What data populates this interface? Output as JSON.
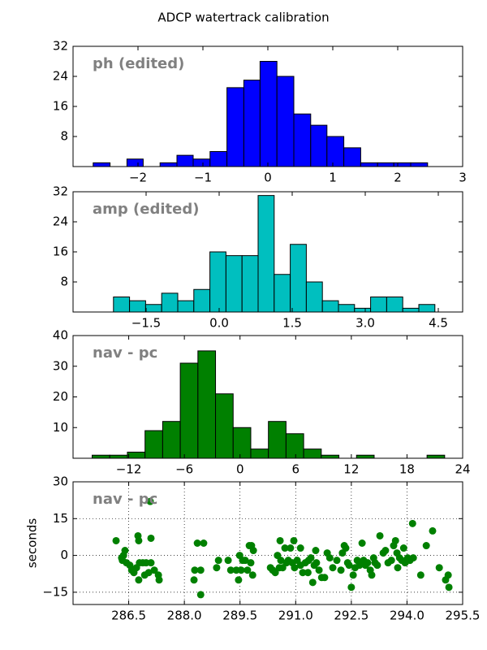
{
  "title": "ADCP watertrack calibration",
  "chart_data": [
    {
      "type": "histogram",
      "annotation": "ph (edited)",
      "color": "#0000ff",
      "bins": [
        -2.69,
        -2.43,
        -2.17,
        -1.92,
        -1.66,
        -1.4,
        -1.15,
        -0.89,
        -0.63,
        -0.37,
        -0.12,
        0.14,
        0.4,
        0.66,
        0.91,
        1.17,
        1.43,
        1.69,
        1.94,
        2.2,
        2.46
      ],
      "counts": [
        1,
        0,
        2,
        0,
        1,
        3,
        2,
        4,
        21,
        23,
        28,
        24,
        14,
        11,
        8,
        5,
        1,
        1,
        1,
        1
      ],
      "xlim": [
        -3,
        3
      ],
      "xticks": [
        {
          "value": -2,
          "label": "−2"
        },
        {
          "value": -1,
          "label": "−1"
        },
        0,
        1,
        2,
        3
      ],
      "ylim": [
        0,
        32
      ],
      "yticks": [
        8,
        16,
        24,
        32
      ]
    },
    {
      "type": "histogram",
      "annotation": "amp (edited)",
      "color": "#00bfbf",
      "bins": [
        -2.17,
        -1.84,
        -1.51,
        -1.18,
        -0.85,
        -0.52,
        -0.19,
        0.14,
        0.47,
        0.8,
        1.13,
        1.46,
        1.79,
        2.12,
        2.45,
        2.78,
        3.11,
        3.44,
        3.77,
        4.1,
        4.43
      ],
      "counts": [
        4,
        3,
        2,
        5,
        3,
        6,
        16,
        15,
        15,
        31,
        10,
        18,
        8,
        3,
        2,
        1,
        4,
        4,
        1,
        2
      ],
      "xlim": [
        -3,
        5
      ],
      "xticks": [
        {
          "value": -1.5,
          "label": "−1.5"
        },
        {
          "value": 0,
          "label": "0.0"
        },
        1.5,
        {
          "value": 3,
          "label": "3.0"
        },
        4.5
      ],
      "ylim": [
        0,
        32
      ],
      "yticks": [
        8,
        16,
        24,
        32
      ]
    },
    {
      "type": "histogram",
      "annotation": "nav - pc",
      "color": "#008000",
      "bins": [
        -15.94,
        -14.04,
        -12.14,
        -10.24,
        -8.34,
        -6.44,
        -4.54,
        -2.64,
        -0.74,
        1.16,
        3.06,
        4.96,
        6.86,
        8.76,
        10.66,
        12.56,
        14.46,
        16.36,
        18.26,
        20.16,
        22.06
      ],
      "counts": [
        1,
        1,
        2,
        9,
        12,
        31,
        35,
        21,
        10,
        3,
        12,
        8,
        3,
        1,
        0,
        1,
        0,
        0,
        0,
        1
      ],
      "xlim": [
        -18,
        24
      ],
      "xticks": [
        {
          "value": -12,
          "label": "−12"
        },
        {
          "value": -6,
          "label": "−6"
        },
        0,
        6,
        12,
        18,
        24
      ],
      "ylim": [
        0,
        40
      ],
      "yticks": [
        10,
        20,
        30,
        40
      ]
    },
    {
      "type": "scatter",
      "annotation": "nav - pc",
      "ylabel": "seconds",
      "color": "#008000",
      "grid": true,
      "x": [
        286.16,
        286.31,
        286.36,
        286.4,
        286.33,
        286.44,
        286.53,
        286.58,
        286.64,
        286.71,
        286.75,
        286.77,
        286.79,
        286.77,
        286.88,
        286.93,
        286.97,
        287.04,
        287.08,
        287.1,
        287.1,
        287.19,
        287.3,
        287.32,
        288.26,
        288.28,
        288.35,
        288.44,
        288.52,
        288.44,
        288.87,
        288.92,
        289.25,
        289.18,
        289.4,
        289.46,
        289.49,
        289.53,
        289.57,
        289.64,
        289.7,
        289.75,
        289.79,
        289.81,
        289.86,
        289.84,
        290.32,
        290.38,
        290.45,
        290.51,
        290.56,
        290.58,
        290.6,
        290.65,
        290.71,
        290.75,
        290.8,
        290.86,
        290.91,
        290.95,
        290.97,
        291.04,
        291.13,
        291.13,
        291.19,
        291.26,
        291.33,
        291.35,
        291.41,
        291.46,
        291.5,
        291.54,
        291.56,
        291.63,
        291.7,
        291.78,
        291.85,
        291.92,
        292.0,
        292.11,
        292.22,
        292.26,
        292.31,
        292.35,
        292.4,
        292.44,
        292.5,
        292.55,
        292.6,
        292.66,
        292.72,
        292.79,
        292.83,
        292.88,
        292.94,
        293.01,
        293.05,
        293.1,
        293.14,
        293.2,
        293.27,
        293.36,
        293.42,
        293.49,
        293.58,
        293.64,
        293.69,
        293.73,
        293.75,
        293.8,
        293.86,
        293.91,
        293.95,
        294.02,
        294.08,
        294.15,
        294.17,
        294.37,
        294.52,
        294.69,
        294.87,
        295.04,
        295.13,
        295.11
      ],
      "y": [
        6,
        -1,
        0,
        2,
        -2,
        -3,
        -4,
        -6,
        -7,
        -5,
        8,
        6,
        -3,
        -10,
        -3,
        -8,
        -3,
        -7,
        22,
        7,
        -3,
        -6,
        -8,
        -10,
        -10,
        -6,
        5,
        -16,
        5,
        -6,
        -5,
        -2,
        -6,
        -2,
        -6,
        -10,
        0,
        -6,
        -2,
        -2,
        -6,
        4,
        -3,
        4,
        2,
        -8,
        -5,
        -6,
        -7,
        0,
        -5,
        6,
        -2,
        -5,
        3,
        -3,
        -2,
        3,
        -3,
        6,
        -5,
        -2,
        3,
        -4,
        -7,
        -3,
        -7,
        -2,
        -1,
        -11,
        -4,
        2,
        -3,
        -6,
        -9,
        -9,
        1,
        -1,
        -5,
        -2,
        -6,
        1,
        4,
        3,
        -3,
        -4,
        -13,
        -8,
        -5,
        -2,
        -4,
        5,
        -2,
        -4,
        -3,
        -6,
        -8,
        -1,
        -3,
        -4,
        8,
        1,
        2,
        -3,
        -2,
        4,
        6,
        1,
        -5,
        -1,
        -2,
        3,
        -3,
        -1,
        -2,
        13,
        -1,
        -8,
        4,
        10,
        -5,
        -10,
        -13,
        -8
      ],
      "xlim": [
        285,
        295.5
      ],
      "xticks": [
        286.5,
        {
          "value": 288,
          "label": "288.0"
        },
        289.5,
        {
          "value": 291,
          "label": "291.0"
        },
        292.5,
        {
          "value": 294,
          "label": "294.0"
        },
        295.5
      ],
      "ylim": [
        -20,
        30
      ],
      "yticks": [
        {
          "value": -15,
          "label": "−15"
        },
        0,
        15,
        30
      ]
    }
  ]
}
